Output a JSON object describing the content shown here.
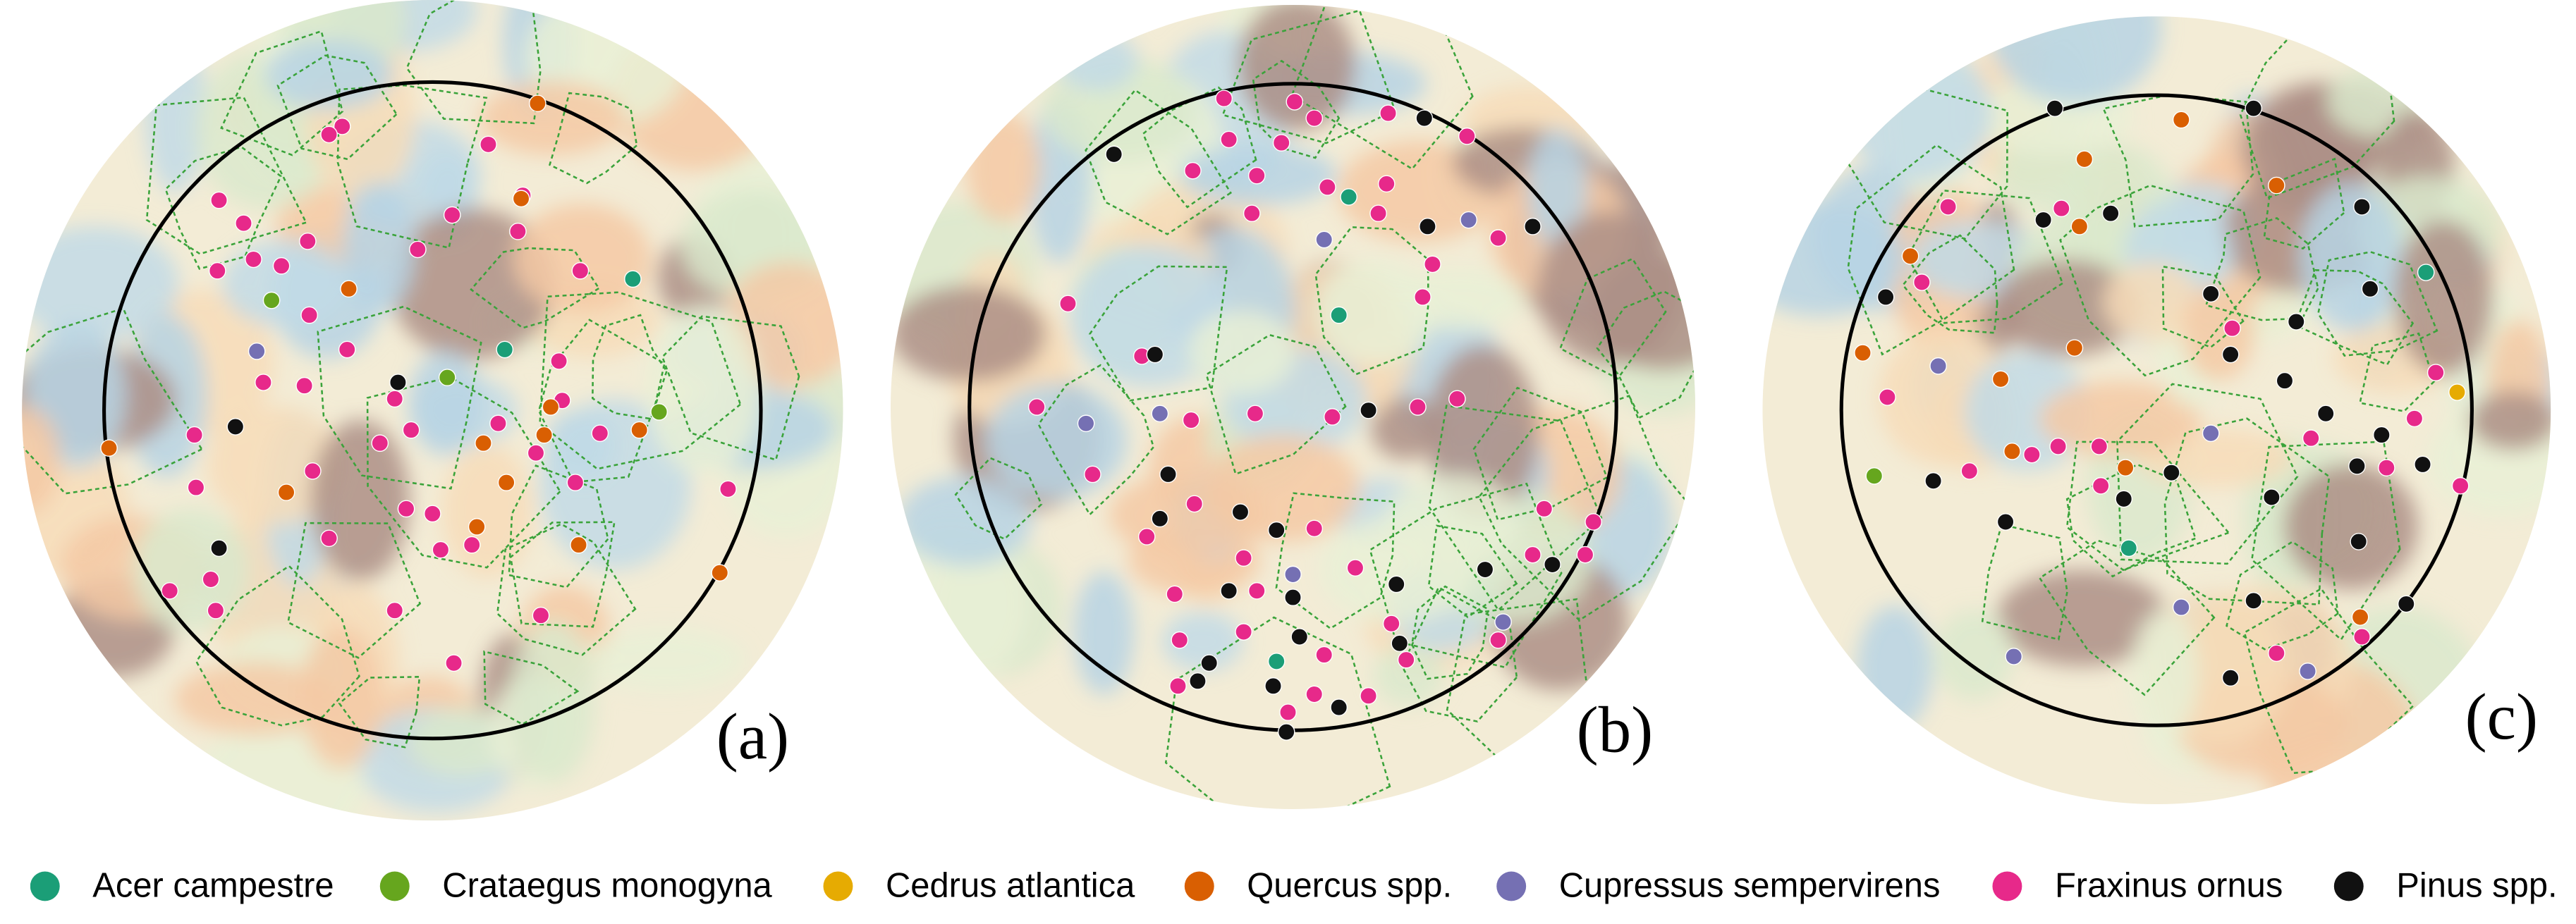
{
  "panels": [
    {
      "label": "(a)"
    },
    {
      "label": "(b)"
    },
    {
      "label": "(c)"
    }
  ],
  "legend": [
    {
      "name": "Acer campestre",
      "color": "#1b9e77"
    },
    {
      "name": "Crataegus monogyna",
      "color": "#66a61e"
    },
    {
      "name": "Cedrus atlantica",
      "color": "#e6ab02"
    },
    {
      "name": "Quercus spp.",
      "color": "#d95f02"
    },
    {
      "name": "Cupressus sempervirens",
      "color": "#7570b3"
    },
    {
      "name": "Fraxinus ornus",
      "color": "#e7298a"
    },
    {
      "name": "Pinus spp.",
      "color": "#111111"
    }
  ]
}
